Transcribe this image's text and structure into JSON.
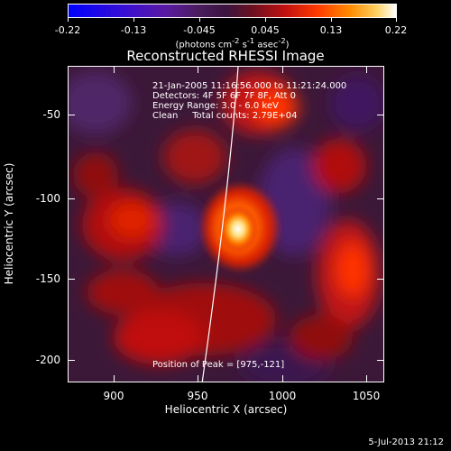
{
  "colorbar": {
    "ticks": [
      "-0.22",
      "-0.13",
      "-0.045",
      "0.045",
      "0.13",
      "0.22"
    ],
    "units_html": "(photons cm<sup>-2</sup> s<sup>-1</sup> asec<sup>-2</sup>)"
  },
  "title": "Reconstructed RHESSI Image",
  "info": {
    "line1": "21-Jan-2005 11:16:56.000 to 11:21:24.000",
    "line2": "Detectors: 4F 5F 6F 7F 8F, Att 0",
    "line3": "Energy Range: 3.0 - 6.0 keV",
    "line4": "Clean     Total counts: 2.79E+04",
    "peak": "Position of Peak = [975,-121]"
  },
  "axes": {
    "xlabel": "Heliocentric X (arcsec)",
    "ylabel": "Heliocentric Y (arcsec)",
    "xticks": [
      "900",
      "950",
      "1000",
      "1050"
    ],
    "yticks": [
      "-50",
      "-100",
      "-150",
      "-200"
    ]
  },
  "footer": "5-Jul-2013 21:12",
  "colors": {
    "background": "#000000",
    "foreground": "#ffffff"
  }
}
